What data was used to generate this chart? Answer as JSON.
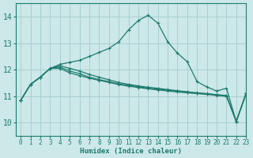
{
  "bg_color": "#cce8e8",
  "grid_color": "#aacfcf",
  "line_color": "#1e7b6e",
  "xlabel": "Humidex (Indice chaleur)",
  "xlim": [
    -0.5,
    23
  ],
  "ylim": [
    9.5,
    14.5
  ],
  "yticks": [
    10,
    11,
    12,
    13,
    14
  ],
  "xticks": [
    0,
    1,
    2,
    3,
    4,
    5,
    6,
    7,
    8,
    9,
    10,
    11,
    12,
    13,
    14,
    15,
    16,
    17,
    18,
    19,
    20,
    21,
    22,
    23
  ],
  "series": [
    {
      "x": [
        0,
        1,
        2,
        3,
        4,
        5,
        6,
        7,
        8,
        9,
        10,
        11,
        12,
        13,
        14,
        15,
        16,
        17,
        18,
        19,
        20,
        21,
        22,
        23
      ],
      "y": [
        10.85,
        11.45,
        11.72,
        12.05,
        12.2,
        12.28,
        12.35,
        12.5,
        12.65,
        12.8,
        13.05,
        13.5,
        13.85,
        14.05,
        13.75,
        13.05,
        12.62,
        12.3,
        11.55,
        11.35,
        11.2,
        11.3,
        10.05,
        11.1
      ]
    },
    {
      "x": [
        0,
        1,
        2,
        3,
        4,
        5,
        6,
        7,
        8,
        9,
        10,
        11,
        12,
        13,
        14,
        15,
        16,
        17,
        18,
        19,
        20,
        21,
        22,
        23
      ],
      "y": [
        10.85,
        11.45,
        11.72,
        12.05,
        12.05,
        11.88,
        11.78,
        11.68,
        11.6,
        11.52,
        11.44,
        11.38,
        11.33,
        11.28,
        11.24,
        11.2,
        11.16,
        11.13,
        11.1,
        11.07,
        11.03,
        11.0,
        10.05,
        11.1
      ]
    },
    {
      "x": [
        0,
        1,
        2,
        3,
        4,
        5,
        6,
        7,
        8,
        9,
        10,
        11,
        12,
        13,
        14,
        15,
        16,
        17,
        18,
        19,
        20,
        21,
        22,
        23
      ],
      "y": [
        10.85,
        11.45,
        11.72,
        12.05,
        12.1,
        11.95,
        11.85,
        11.72,
        11.63,
        11.55,
        11.47,
        11.41,
        11.36,
        11.31,
        11.27,
        11.23,
        11.19,
        11.15,
        11.12,
        11.09,
        11.05,
        11.02,
        10.05,
        11.1
      ]
    },
    {
      "x": [
        0,
        1,
        2,
        3,
        4,
        5,
        6,
        7,
        8,
        9,
        10,
        11,
        12,
        13,
        14,
        15,
        16,
        17,
        18,
        19,
        20,
        21,
        22,
        23
      ],
      "y": [
        10.85,
        11.45,
        11.72,
        12.05,
        12.15,
        12.05,
        11.95,
        11.82,
        11.72,
        11.62,
        11.52,
        11.45,
        11.39,
        11.34,
        11.3,
        11.25,
        11.21,
        11.17,
        11.13,
        11.1,
        11.06,
        11.03,
        10.05,
        11.1
      ]
    }
  ]
}
